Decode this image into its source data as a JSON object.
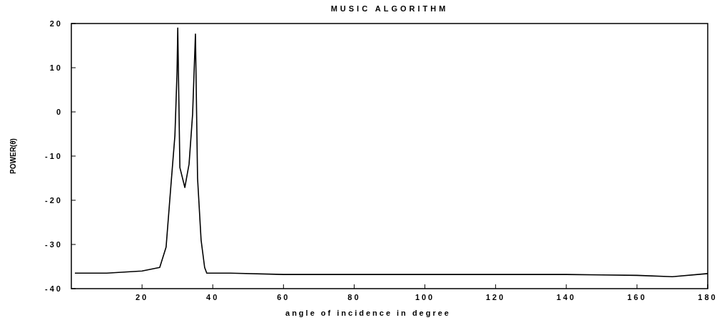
{
  "chart_data": {
    "type": "line",
    "title": "MUSIC ALGORITHM",
    "xlabel": "angle of incidence in degree",
    "ylabel": "POWER(θ)",
    "xlim": [
      0,
      180
    ],
    "xticks": [
      20,
      40,
      60,
      80,
      100,
      120,
      140,
      160,
      180
    ],
    "ylim": [
      -40,
      20
    ],
    "yticks": [
      -40,
      -30,
      -20,
      -10,
      0,
      10,
      20
    ],
    "grid": false,
    "series": [
      {
        "color": "#000000",
        "x": [
          1,
          10,
          20,
          25,
          26.8,
          28.2,
          29.3,
          29.9,
          30.1,
          30.7,
          32.1,
          33.3,
          34.3,
          35.1,
          35.7,
          36.7,
          37.7,
          38.3,
          45,
          60,
          100,
          140,
          150,
          160,
          170,
          180
        ],
        "values": [
          -36.5,
          -36.5,
          -36,
          -35.2,
          -30.6,
          -16.3,
          -5.3,
          9.2,
          19,
          -12.6,
          -17.1,
          -11.8,
          -0.5,
          17.6,
          -15,
          -29,
          -35.2,
          -36.5,
          -36.5,
          -36.8,
          -36.8,
          -36.8,
          -36.9,
          -37,
          -37.3,
          -36.6
        ]
      }
    ]
  }
}
